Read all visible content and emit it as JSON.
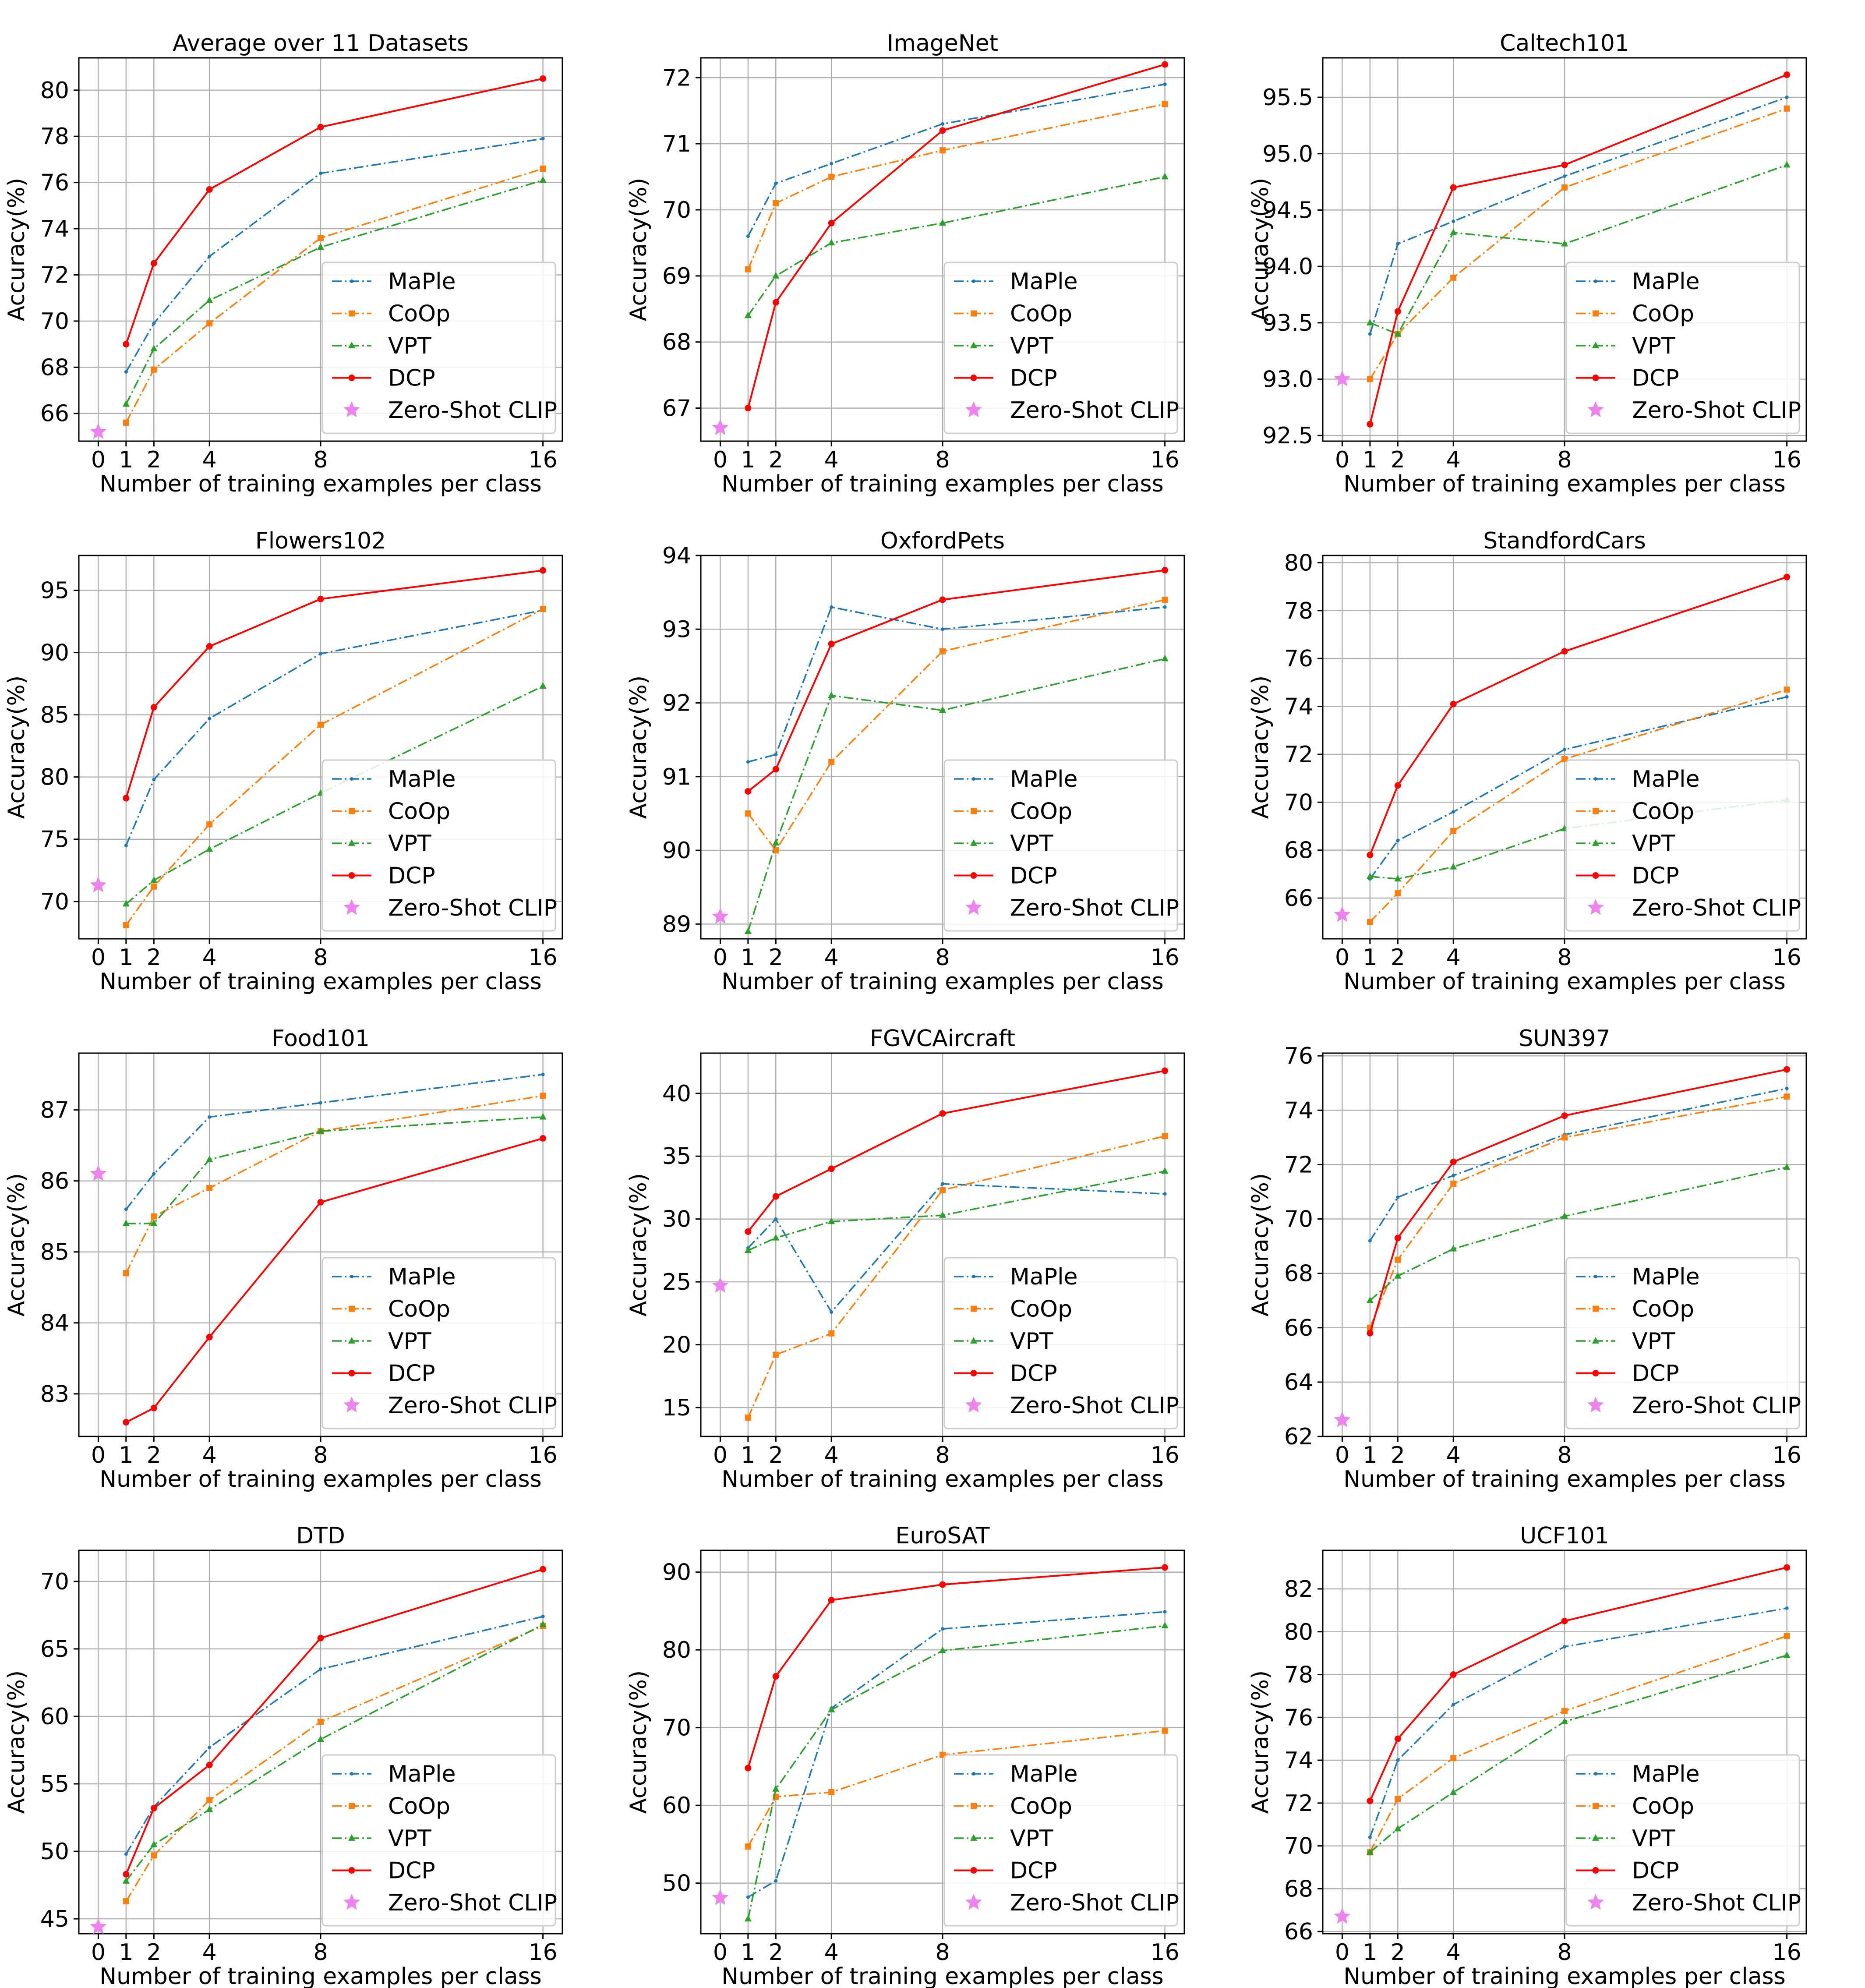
{
  "chart_data": {
    "type": "line",
    "x": [
      1,
      2,
      4,
      8,
      16
    ],
    "xlabel": "Number of training examples per class",
    "ylabel": "Accuracy(%)",
    "x_ticks": [
      0,
      1,
      2,
      4,
      8,
      16
    ],
    "grid": true,
    "legend_position": "lower-right",
    "legend": [
      "MaPle",
      "CoOp",
      "VPT",
      "DCP",
      "Zero-Shot CLIP"
    ],
    "colors": {
      "MaPle": "#1f77b4",
      "CoOp": "#ff7f0e",
      "VPT": "#2ca02c",
      "DCP": "#ff0000",
      "Zero-Shot CLIP": "#ee82ee"
    },
    "panels": [
      {
        "title": "Average over 11 Datasets",
        "ylim": [
          64.8,
          81.4
        ],
        "yticks": [
          66,
          68,
          70,
          72,
          74,
          76,
          78,
          80
        ],
        "tick_decimals": 0,
        "zero_shot": 65.2,
        "series": [
          {
            "name": "MaPle",
            "values": [
              67.8,
              69.9,
              72.8,
              76.4,
              77.9
            ]
          },
          {
            "name": "CoOp",
            "values": [
              65.6,
              67.9,
              69.9,
              73.6,
              76.6
            ]
          },
          {
            "name": "VPT",
            "values": [
              66.4,
              68.8,
              70.9,
              73.2,
              76.1
            ]
          },
          {
            "name": "DCP",
            "values": [
              69.0,
              72.5,
              75.7,
              78.4,
              80.5
            ]
          }
        ]
      },
      {
        "title": "ImageNet",
        "ylim": [
          66.5,
          72.3
        ],
        "yticks": [
          67,
          68,
          69,
          70,
          71,
          72
        ],
        "tick_decimals": 0,
        "zero_shot": 66.7,
        "series": [
          {
            "name": "MaPle",
            "values": [
              69.6,
              70.4,
              70.7,
              71.3,
              71.9
            ]
          },
          {
            "name": "CoOp",
            "values": [
              69.1,
              70.1,
              70.5,
              70.9,
              71.6
            ]
          },
          {
            "name": "VPT",
            "values": [
              68.4,
              69.0,
              69.5,
              69.8,
              70.5
            ]
          },
          {
            "name": "DCP",
            "values": [
              67.0,
              68.6,
              69.8,
              71.2,
              72.2
            ]
          }
        ]
      },
      {
        "title": "Caltech101",
        "ylim": [
          92.45,
          95.85
        ],
        "yticks": [
          92.5,
          93.0,
          93.5,
          94.0,
          94.5,
          95.0,
          95.5
        ],
        "tick_decimals": 1,
        "zero_shot": 93.0,
        "series": [
          {
            "name": "MaPle",
            "values": [
              93.4,
              94.2,
              94.4,
              94.8,
              95.5
            ]
          },
          {
            "name": "CoOp",
            "values": [
              93.0,
              93.4,
              93.9,
              94.7,
              95.4
            ]
          },
          {
            "name": "VPT",
            "values": [
              93.5,
              93.4,
              94.3,
              94.2,
              94.9
            ]
          },
          {
            "name": "DCP",
            "values": [
              92.6,
              93.6,
              94.7,
              94.9,
              95.7
            ]
          }
        ]
      },
      {
        "title": "Flowers102",
        "ylim": [
          67.0,
          97.8
        ],
        "yticks": [
          70,
          75,
          80,
          85,
          90,
          95
        ],
        "tick_decimals": 0,
        "zero_shot": 71.3,
        "series": [
          {
            "name": "MaPle",
            "values": [
              74.5,
              79.8,
              84.7,
              89.9,
              93.4
            ]
          },
          {
            "name": "CoOp",
            "values": [
              68.1,
              71.2,
              76.2,
              84.2,
              93.5
            ]
          },
          {
            "name": "VPT",
            "values": [
              69.8,
              71.7,
              74.2,
              78.7,
              87.3
            ]
          },
          {
            "name": "DCP",
            "values": [
              78.3,
              85.6,
              90.5,
              94.3,
              96.6
            ]
          }
        ]
      },
      {
        "title": "OxfordPets",
        "ylim": [
          88.8,
          94.0
        ],
        "yticks": [
          89,
          90,
          91,
          92,
          93,
          94
        ],
        "tick_decimals": 0,
        "zero_shot": 89.1,
        "series": [
          {
            "name": "MaPle",
            "values": [
              91.2,
              91.3,
              93.3,
              93.0,
              93.3
            ]
          },
          {
            "name": "CoOp",
            "values": [
              90.5,
              90.0,
              91.2,
              92.7,
              93.4
            ]
          },
          {
            "name": "VPT",
            "values": [
              88.9,
              90.1,
              92.1,
              91.9,
              92.6
            ]
          },
          {
            "name": "DCP",
            "values": [
              90.8,
              91.1,
              92.8,
              93.4,
              93.8
            ]
          }
        ]
      },
      {
        "title": "StandfordCars",
        "ylim": [
          64.3,
          80.3
        ],
        "yticks": [
          66,
          68,
          70,
          72,
          74,
          76,
          78,
          80
        ],
        "tick_decimals": 0,
        "zero_shot": 65.3,
        "series": [
          {
            "name": "MaPle",
            "values": [
              66.8,
              68.4,
              69.6,
              72.2,
              74.4
            ]
          },
          {
            "name": "CoOp",
            "values": [
              65.0,
              66.2,
              68.8,
              71.8,
              74.7
            ]
          },
          {
            "name": "VPT",
            "values": [
              66.9,
              66.8,
              67.3,
              68.9,
              70.1
            ]
          },
          {
            "name": "DCP",
            "values": [
              67.8,
              70.7,
              74.1,
              76.3,
              79.4
            ]
          }
        ]
      },
      {
        "title": "Food101",
        "ylim": [
          82.4,
          87.8
        ],
        "yticks": [
          83,
          84,
          85,
          86,
          87
        ],
        "tick_decimals": 0,
        "zero_shot": 86.1,
        "series": [
          {
            "name": "MaPle",
            "values": [
              85.6,
              86.1,
              86.9,
              87.1,
              87.5
            ]
          },
          {
            "name": "CoOp",
            "values": [
              84.7,
              85.5,
              85.9,
              86.7,
              87.2
            ]
          },
          {
            "name": "VPT",
            "values": [
              85.4,
              85.4,
              86.3,
              86.7,
              86.9
            ]
          },
          {
            "name": "DCP",
            "values": [
              82.6,
              82.8,
              83.8,
              85.7,
              86.6
            ]
          }
        ]
      },
      {
        "title": "FGVCAircraft",
        "ylim": [
          12.7,
          43.2
        ],
        "yticks": [
          15,
          20,
          25,
          30,
          35,
          40
        ],
        "tick_decimals": 0,
        "zero_shot": 24.7,
        "series": [
          {
            "name": "MaPle",
            "values": [
              27.7,
              30.0,
              22.6,
              32.8,
              32.0
            ]
          },
          {
            "name": "CoOp",
            "values": [
              14.2,
              19.2,
              20.9,
              32.3,
              36.6
            ]
          },
          {
            "name": "VPT",
            "values": [
              27.5,
              28.5,
              29.8,
              30.3,
              33.8
            ]
          },
          {
            "name": "DCP",
            "values": [
              29.0,
              31.8,
              34.0,
              38.4,
              41.8
            ]
          }
        ]
      },
      {
        "title": "SUN397",
        "ylim": [
          62.0,
          76.1
        ],
        "yticks": [
          62,
          64,
          66,
          68,
          70,
          72,
          74,
          76
        ],
        "tick_decimals": 0,
        "zero_shot": 62.6,
        "series": [
          {
            "name": "MaPle",
            "values": [
              69.2,
              70.8,
              71.6,
              73.1,
              74.8
            ]
          },
          {
            "name": "CoOp",
            "values": [
              66.0,
              68.5,
              71.3,
              73.0,
              74.5
            ]
          },
          {
            "name": "VPT",
            "values": [
              67.0,
              67.9,
              68.9,
              70.1,
              71.9
            ]
          },
          {
            "name": "DCP",
            "values": [
              65.8,
              69.3,
              72.1,
              73.8,
              75.5
            ]
          }
        ]
      },
      {
        "title": "DTD",
        "ylim": [
          43.9,
          72.3
        ],
        "yticks": [
          45,
          50,
          55,
          60,
          65,
          70
        ],
        "tick_decimals": 0,
        "zero_shot": 44.4,
        "series": [
          {
            "name": "MaPle",
            "values": [
              49.8,
              53.3,
              57.7,
              63.5,
              67.4
            ]
          },
          {
            "name": "CoOp",
            "values": [
              46.3,
              49.7,
              53.8,
              59.6,
              66.7
            ]
          },
          {
            "name": "VPT",
            "values": [
              47.8,
              50.5,
              53.1,
              58.3,
              66.8
            ]
          },
          {
            "name": "DCP",
            "values": [
              48.3,
              53.2,
              56.4,
              65.8,
              70.9
            ]
          }
        ]
      },
      {
        "title": "EuroSAT",
        "ylim": [
          43.5,
          92.8
        ],
        "yticks": [
          50,
          60,
          70,
          80,
          90
        ],
        "tick_decimals": 0,
        "zero_shot": 48.1,
        "series": [
          {
            "name": "MaPle",
            "values": [
              48.2,
              50.3,
              72.5,
              82.7,
              84.9
            ]
          },
          {
            "name": "CoOp",
            "values": [
              54.7,
              61.1,
              61.7,
              66.5,
              69.6
            ]
          },
          {
            "name": "VPT",
            "values": [
              45.4,
              62.1,
              72.3,
              79.9,
              83.1
            ]
          },
          {
            "name": "DCP",
            "values": [
              64.8,
              76.6,
              86.4,
              88.4,
              90.6
            ]
          }
        ]
      },
      {
        "title": "UCF101",
        "ylim": [
          65.9,
          83.8
        ],
        "yticks": [
          66,
          68,
          70,
          72,
          74,
          76,
          78,
          80,
          82
        ],
        "tick_decimals": 0,
        "zero_shot": 66.7,
        "series": [
          {
            "name": "MaPle",
            "values": [
              70.4,
              74.0,
              76.6,
              79.3,
              81.1
            ]
          },
          {
            "name": "CoOp",
            "values": [
              69.7,
              72.2,
              74.1,
              76.3,
              79.8
            ]
          },
          {
            "name": "VPT",
            "values": [
              69.7,
              70.8,
              72.5,
              75.8,
              78.9
            ]
          },
          {
            "name": "DCP",
            "values": [
              72.1,
              75.0,
              78.0,
              80.5,
              83.0
            ]
          }
        ]
      }
    ]
  }
}
